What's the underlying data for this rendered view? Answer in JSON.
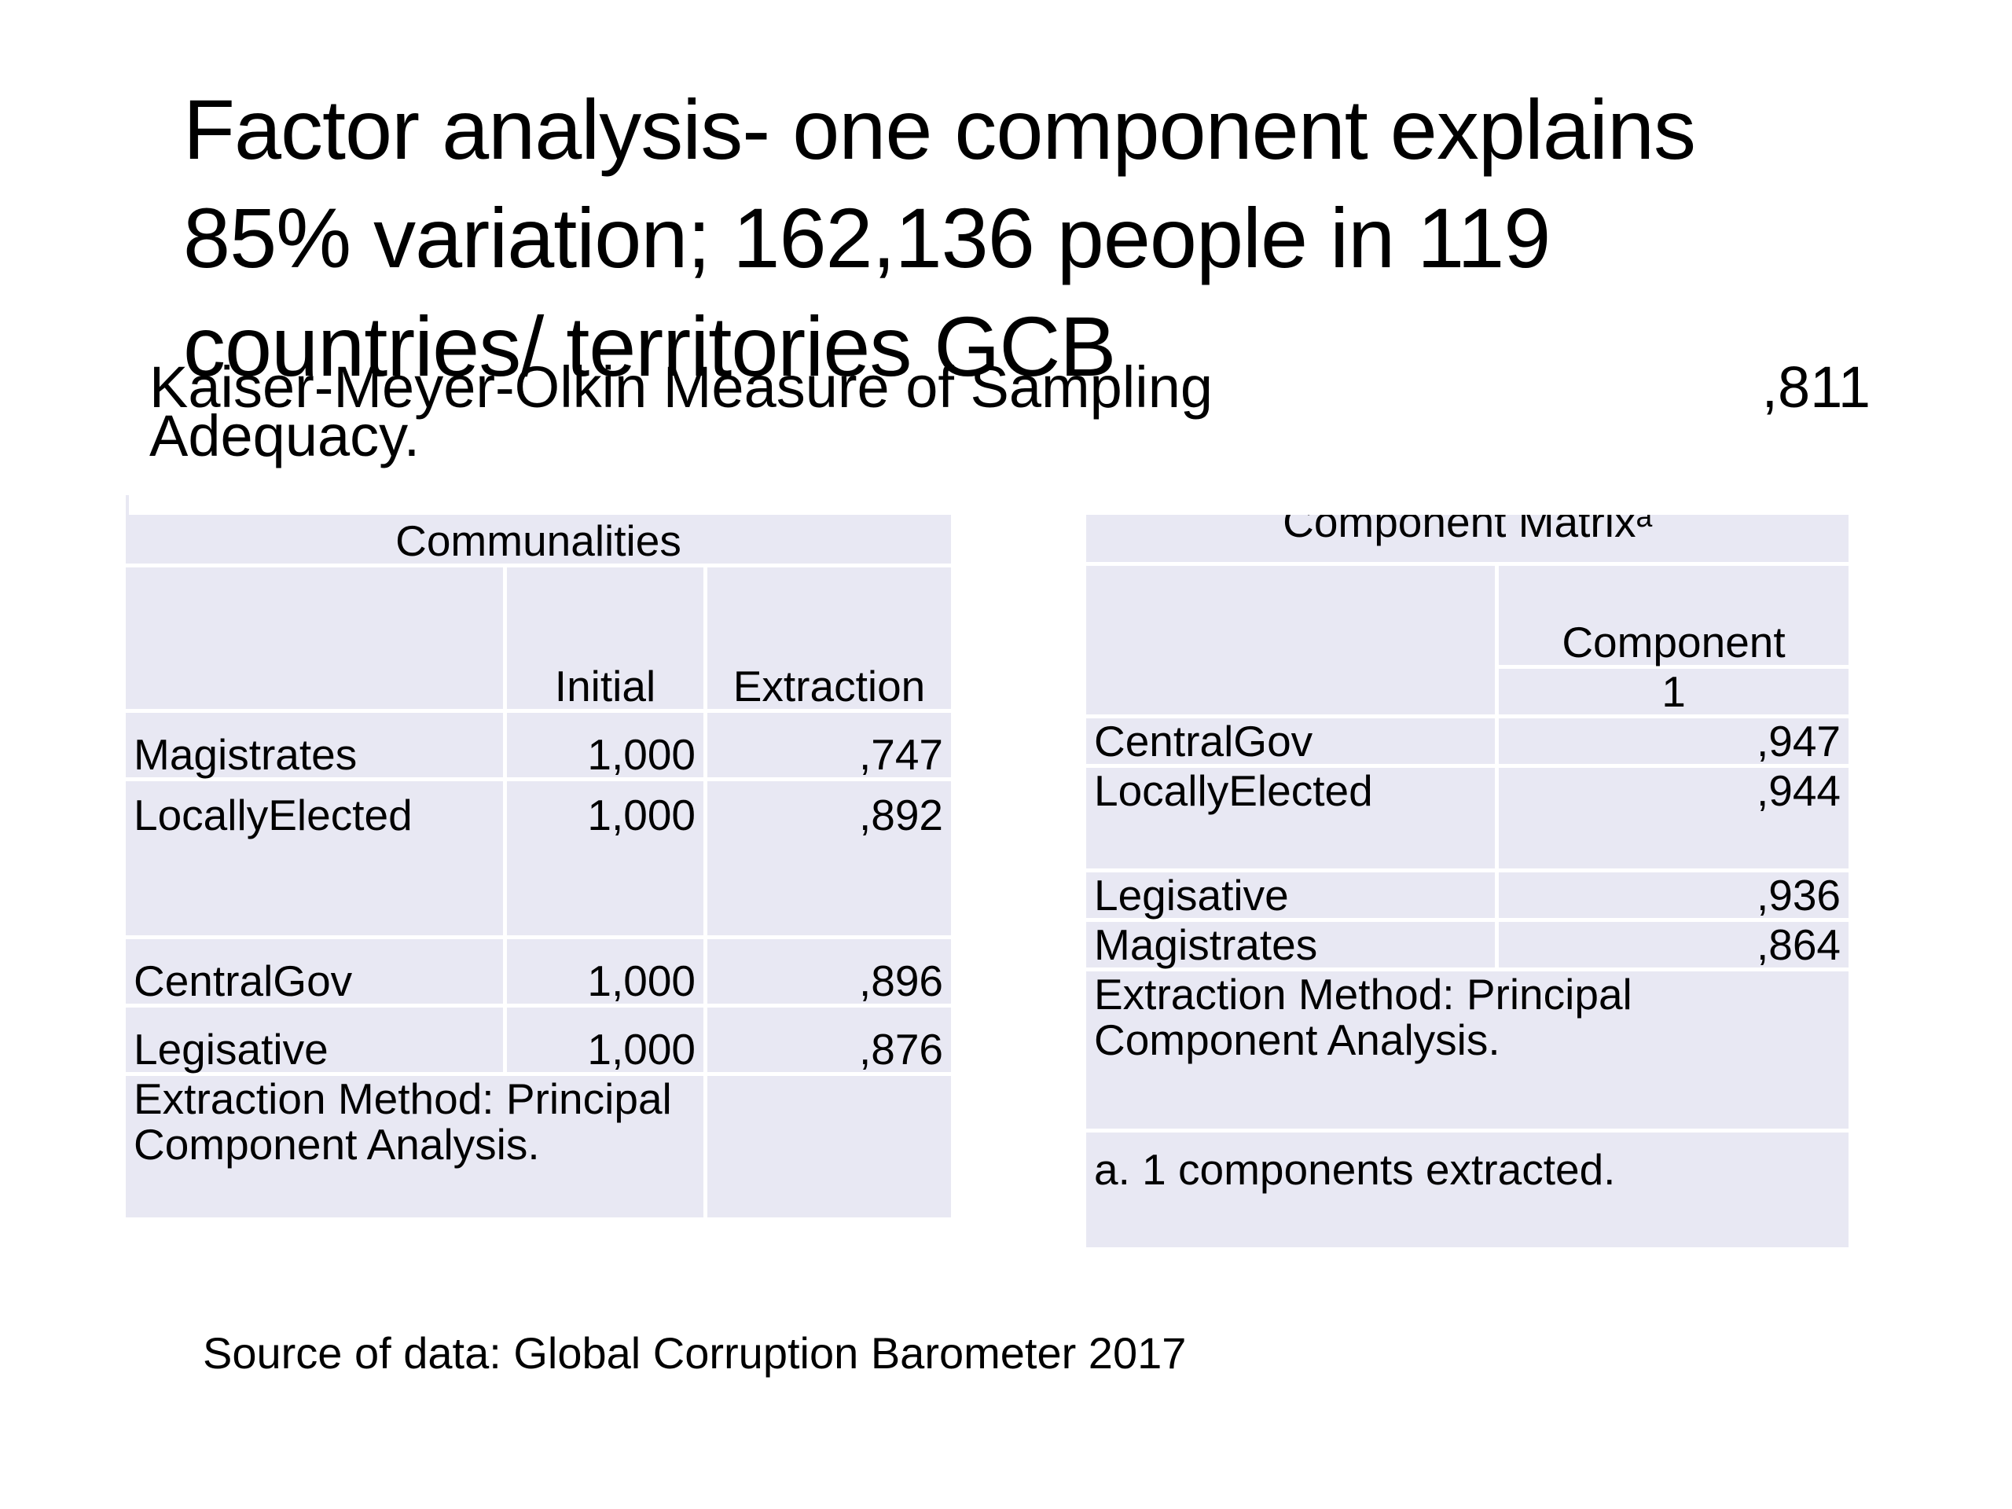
{
  "slide": {
    "title": "Factor analysis- one component explains 85% variation; 162,136 people in 119 countries/ territories GCB",
    "kmo_label": "Kaiser-Meyer-Olkin Measure of Sampling Adequacy.",
    "kmo_value": ",811",
    "source": "Source of data: Global Corruption Barometer 2017"
  },
  "communalities": {
    "caption": "Communalities",
    "headers": [
      "",
      "Initial",
      "Extraction"
    ],
    "rows": [
      {
        "label": "Magistrates",
        "initial": "1,000",
        "extraction": ",747"
      },
      {
        "label": "LocallyElected",
        "initial": "1,000",
        "extraction": ",892"
      },
      {
        "label": "CentralGov",
        "initial": "1,000",
        "extraction": ",896"
      },
      {
        "label": "Legisative",
        "initial": "1,000",
        "extraction": ",876"
      }
    ],
    "footnote": "Extraction Method: Principal Component Analysis."
  },
  "component_matrix": {
    "caption": "Component Matrixᵃ",
    "header": "Component",
    "subheader": "1",
    "rows": [
      {
        "label": "CentralGov",
        "value": ",947"
      },
      {
        "label": "LocallyElected",
        "value": ",944"
      },
      {
        "label": "Legisative",
        "value": ",936"
      },
      {
        "label": "Magistrates",
        "value": ",864"
      }
    ],
    "footnote": "Extraction Method: Principal Component Analysis.",
    "footnote2": "a. 1 components extracted."
  }
}
